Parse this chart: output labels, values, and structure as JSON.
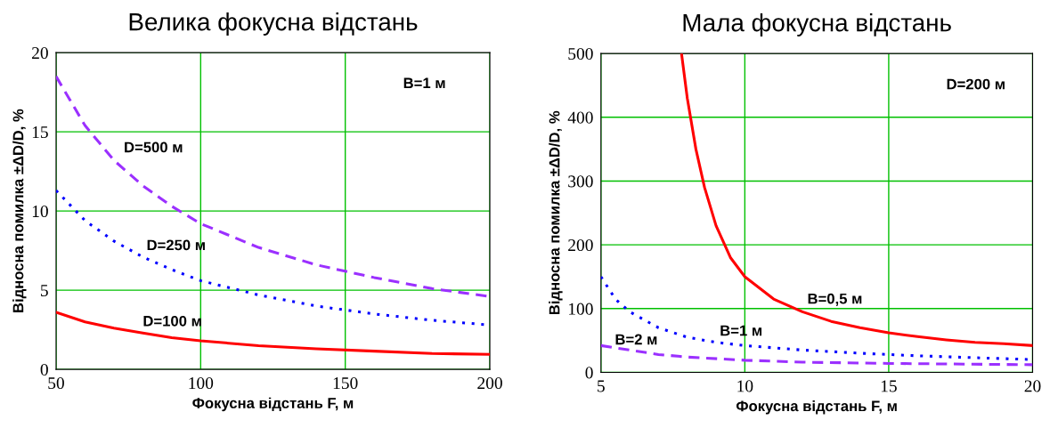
{
  "chart_data": [
    {
      "type": "line",
      "title": "Велика фокусна відстань",
      "xlabel": "Фокусна відстань F, м",
      "ylabel": "Відносна помилка ±ΔD/D, %",
      "xlim": [
        50,
        200
      ],
      "ylim": [
        0,
        20
      ],
      "xticks": [
        50,
        100,
        150,
        200
      ],
      "yticks": [
        0,
        5,
        10,
        15,
        20
      ],
      "grid": true,
      "x": [
        50,
        60,
        70,
        80,
        90,
        100,
        120,
        140,
        160,
        180,
        200
      ],
      "series": [
        {
          "name": "D=500 м",
          "color": "#9b30ff",
          "line_style": "dashed",
          "values": [
            18.5,
            15.4,
            13.2,
            11.6,
            10.3,
            9.2,
            7.7,
            6.6,
            5.8,
            5.1,
            4.6
          ]
        },
        {
          "name": "D=250 м",
          "color": "#0000ff",
          "line_style": "dotted",
          "values": [
            11.3,
            9.4,
            8.1,
            7.1,
            6.3,
            5.6,
            4.7,
            4.0,
            3.5,
            3.1,
            2.8
          ]
        },
        {
          "name": "D=100 м",
          "color": "#ff0000",
          "line_style": "solid",
          "values": [
            3.6,
            3.0,
            2.6,
            2.3,
            2.0,
            1.8,
            1.5,
            1.3,
            1.15,
            1.0,
            0.95
          ]
        }
      ],
      "annotations": [
        "B=1 м"
      ]
    },
    {
      "type": "line",
      "title": "Мала фокусна відстань",
      "xlabel": "Фокусна відстань F, м",
      "ylabel": "Відносна помилка ±ΔD/D, %",
      "xlim": [
        5,
        20
      ],
      "ylim": [
        0,
        500
      ],
      "xticks": [
        5,
        10,
        15,
        20
      ],
      "yticks": [
        0,
        100,
        200,
        300,
        400,
        500
      ],
      "grid": true,
      "series": [
        {
          "name": "B=0,5 м",
          "color": "#ff0000",
          "line_style": "solid",
          "x": [
            7.8,
            8.0,
            8.3,
            8.6,
            9,
            9.5,
            10,
            11,
            12,
            13,
            14,
            15,
            16,
            17,
            18,
            19,
            20
          ],
          "values": [
            500,
            430,
            350,
            290,
            230,
            180,
            150,
            115,
            95,
            80,
            70,
            62,
            56,
            51,
            47,
            45,
            42
          ]
        },
        {
          "name": "B=1 м",
          "color": "#0000ff",
          "line_style": "dotted",
          "x": [
            5,
            5.5,
            6,
            7,
            8,
            9,
            10,
            12,
            14,
            16,
            18,
            20
          ],
          "values": [
            150,
            115,
            95,
            70,
            55,
            47,
            42,
            35,
            30,
            26,
            23,
            20
          ]
        },
        {
          "name": "B=2 м",
          "color": "#9b30ff",
          "line_style": "dashed",
          "x": [
            5,
            6,
            7,
            8,
            10,
            12,
            15,
            20
          ],
          "values": [
            42,
            35,
            28,
            24,
            19,
            16,
            14,
            12
          ]
        }
      ],
      "annotations": [
        "D=200 м"
      ]
    }
  ]
}
